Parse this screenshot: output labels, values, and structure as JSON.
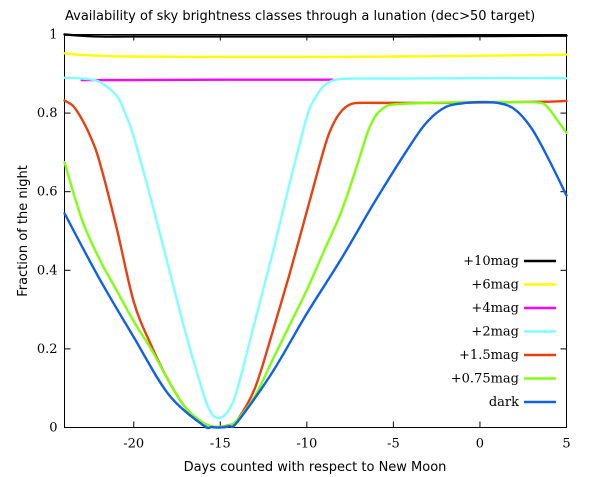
{
  "chart_data": {
    "type": "line",
    "title": "Availability of sky brightness classes through a lunation (dec>50 target)",
    "xlabel": "Days counted with respect to New Moon",
    "ylabel": "Fraction of the night",
    "xlim": [
      -24,
      5
    ],
    "ylim": [
      0,
      1
    ],
    "xticks": [
      -20,
      -15,
      -10,
      -5,
      0,
      5
    ],
    "yticks": [
      0,
      0.2,
      0.4,
      0.6,
      0.8,
      1
    ],
    "xtick_labels": [
      "-20",
      "-15",
      "-10",
      "-5",
      "0",
      "5"
    ],
    "ytick_labels": [
      "0",
      "0.2",
      "0.4",
      "0.6",
      "0.8",
      "1"
    ],
    "grid": false,
    "legend_position": "lower-right",
    "series": [
      {
        "name": "+10mag",
        "color": "#000000",
        "x": [
          -24,
          -23,
          -22,
          -20,
          -15,
          -10,
          -5,
          0,
          4,
          5
        ],
        "y": [
          1.0,
          0.997,
          0.995,
          0.995,
          0.995,
          0.995,
          0.995,
          0.996,
          0.997,
          0.997
        ]
      },
      {
        "name": "+6mag",
        "color": "#ffff00",
        "x": [
          -24,
          -23,
          -22,
          -20,
          -15,
          -10,
          -5,
          0,
          4,
          5
        ],
        "y": [
          0.952,
          0.948,
          0.946,
          0.944,
          0.943,
          0.943,
          0.944,
          0.946,
          0.948,
          0.949
        ]
      },
      {
        "name": "+4mag",
        "color": "#ff00ff",
        "x": [
          -23,
          -20,
          -15,
          -10,
          -8.5
        ],
        "y": [
          0.884,
          0.884,
          0.885,
          0.885,
          0.885
        ]
      },
      {
        "name": "+2mag",
        "color": "#80ffff",
        "x": [
          -24,
          -23,
          -22,
          -21,
          -20.5,
          -20,
          -19,
          -18,
          -17,
          -16,
          -15.5,
          -15,
          -14.5,
          -14,
          -13,
          -12,
          -11,
          -10,
          -9.5,
          -9,
          -8.5,
          -8,
          -7,
          -5,
          0,
          4,
          5
        ],
        "y": [
          0.89,
          0.888,
          0.88,
          0.845,
          0.8,
          0.74,
          0.58,
          0.41,
          0.24,
          0.09,
          0.035,
          0.025,
          0.045,
          0.1,
          0.27,
          0.44,
          0.62,
          0.79,
          0.84,
          0.87,
          0.883,
          0.887,
          0.888,
          0.888,
          0.889,
          0.889,
          0.889
        ]
      },
      {
        "name": "+1.5mag",
        "color": "#e84010",
        "x": [
          -24,
          -23.5,
          -23,
          -22.5,
          -22,
          -21,
          -20,
          -19,
          -18,
          -17,
          -16,
          -15.5,
          -15,
          -14.5,
          -14,
          -13,
          -12,
          -11,
          -10,
          -9,
          -8.5,
          -8,
          -7.5,
          -7,
          -6,
          -5,
          -2,
          0,
          2,
          4,
          5
        ],
        "y": [
          0.832,
          0.818,
          0.785,
          0.74,
          0.68,
          0.51,
          0.32,
          0.21,
          0.12,
          0.05,
          0.012,
          0.003,
          0.002,
          0.006,
          0.02,
          0.1,
          0.24,
          0.39,
          0.55,
          0.71,
          0.77,
          0.805,
          0.822,
          0.826,
          0.826,
          0.826,
          0.826,
          0.827,
          0.828,
          0.829,
          0.831
        ]
      },
      {
        "name": "+0.75mag",
        "color": "#80ff10",
        "x": [
          -24,
          -23,
          -22,
          -21,
          -20,
          -19,
          -18,
          -17,
          -16,
          -15.5,
          -15,
          -14.5,
          -14,
          -13,
          -12,
          -11,
          -10,
          -9,
          -8,
          -7,
          -6.5,
          -6,
          -5.5,
          -5,
          -3,
          0,
          2,
          3.5,
          4,
          4.5,
          5
        ],
        "y": [
          0.675,
          0.53,
          0.43,
          0.35,
          0.27,
          0.2,
          0.12,
          0.05,
          0.012,
          0.003,
          0.002,
          0.005,
          0.02,
          0.08,
          0.17,
          0.26,
          0.35,
          0.45,
          0.55,
          0.68,
          0.75,
          0.795,
          0.815,
          0.822,
          0.826,
          0.828,
          0.828,
          0.826,
          0.81,
          0.78,
          0.75
        ]
      },
      {
        "name": "dark",
        "color": "#1060e8",
        "x": [
          -24,
          -22,
          -20,
          -18,
          -16,
          -15.5,
          -15,
          -14.5,
          -14,
          -12,
          -10,
          -8,
          -6,
          -4,
          -3,
          -2,
          -1,
          0,
          1,
          2,
          3,
          4,
          5
        ],
        "y": [
          0.545,
          0.38,
          0.23,
          0.085,
          0.006,
          0.001,
          0.0,
          0.003,
          0.015,
          0.14,
          0.29,
          0.43,
          0.58,
          0.72,
          0.78,
          0.815,
          0.825,
          0.828,
          0.826,
          0.81,
          0.76,
          0.68,
          0.59
        ]
      }
    ]
  }
}
